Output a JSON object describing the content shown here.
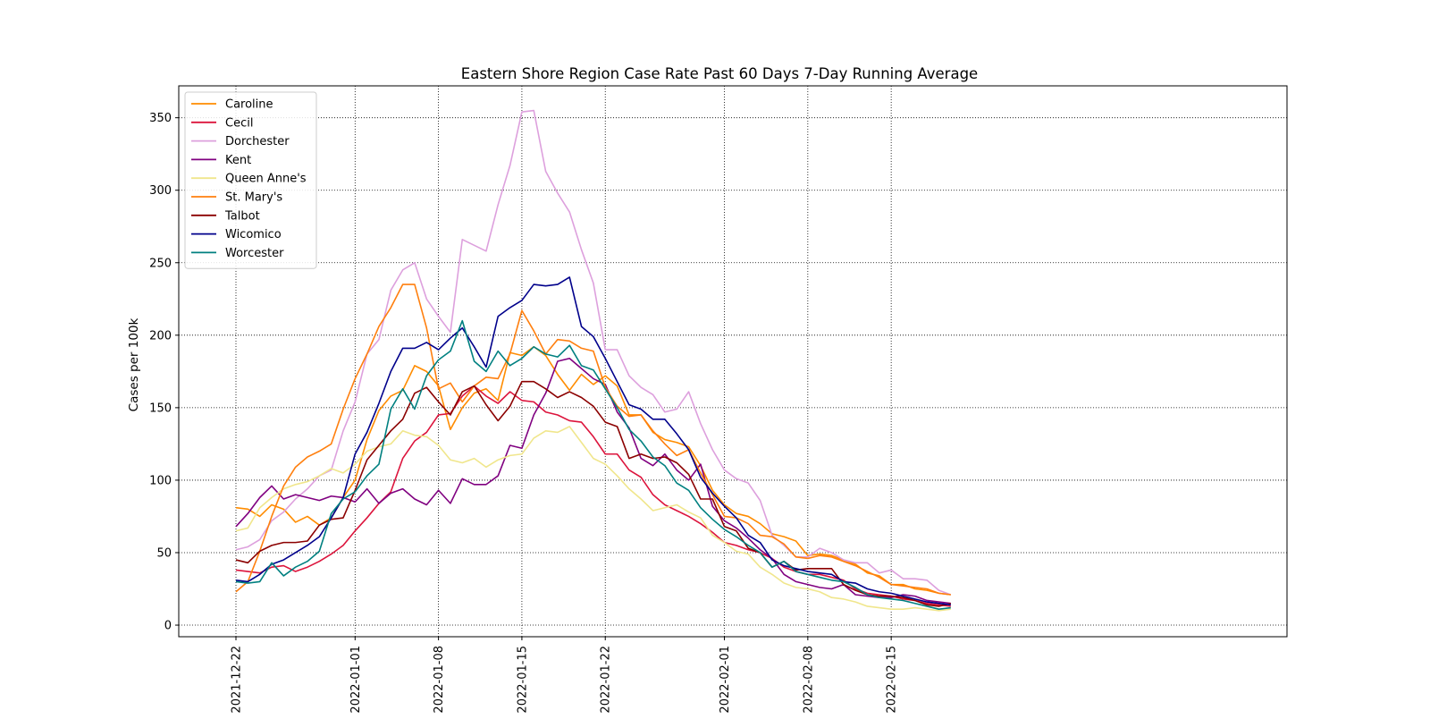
{
  "chart_data": {
    "type": "line",
    "title": "Eastern Shore Region Case Rate  Past 60 Days 7-Day Running Average",
    "xlabel": "",
    "ylabel": "Cases per 100k",
    "x": [
      "2021-12-22",
      "2021-12-23",
      "2021-12-24",
      "2021-12-25",
      "2021-12-26",
      "2021-12-27",
      "2021-12-28",
      "2021-12-29",
      "2021-12-30",
      "2021-12-31",
      "2022-01-01",
      "2022-01-02",
      "2022-01-03",
      "2022-01-04",
      "2022-01-05",
      "2022-01-06",
      "2022-01-07",
      "2022-01-08",
      "2022-01-09",
      "2022-01-10",
      "2022-01-11",
      "2022-01-12",
      "2022-01-13",
      "2022-01-14",
      "2022-01-15",
      "2022-01-16",
      "2022-01-17",
      "2022-01-18",
      "2022-01-19",
      "2022-01-20",
      "2022-01-21",
      "2022-01-22",
      "2022-01-23",
      "2022-01-24",
      "2022-01-25",
      "2022-01-26",
      "2022-01-27",
      "2022-01-28",
      "2022-01-29",
      "2022-01-30",
      "2022-01-31",
      "2022-02-01",
      "2022-02-02",
      "2022-02-03",
      "2022-02-04",
      "2022-02-05",
      "2022-02-06",
      "2022-02-07",
      "2022-02-08",
      "2022-02-09",
      "2022-02-10",
      "2022-02-11",
      "2022-02-12",
      "2022-02-13",
      "2022-02-14",
      "2022-02-15",
      "2022-02-16",
      "2022-02-17",
      "2022-02-18",
      "2022-02-19",
      "2022-02-20"
    ],
    "x_ticks": [
      "2021-12-22",
      "2022-01-01",
      "2022-01-08",
      "2022-01-15",
      "2022-01-22",
      "2022-02-01",
      "2022-02-08",
      "2022-02-15"
    ],
    "y_ticks": [
      0,
      50,
      100,
      150,
      200,
      250,
      300,
      350
    ],
    "ylim": [
      -8,
      372
    ],
    "grid": true,
    "legend_position": "upper-left",
    "series": [
      {
        "name": "Caroline",
        "color": "#ff8c00",
        "values": [
          81,
          80,
          75,
          83,
          80,
          71,
          75,
          69,
          74,
          88,
          100,
          128,
          148,
          158,
          162,
          179,
          175,
          165,
          135,
          150,
          160,
          163,
          155,
          188,
          186,
          192,
          186,
          173,
          162,
          173,
          166,
          172,
          165,
          145,
          145,
          133,
          128,
          126,
          123,
          110,
          93,
          83,
          77,
          75,
          70,
          63,
          61,
          58,
          48,
          49,
          48,
          45,
          42,
          36,
          34,
          28,
          28,
          25,
          24,
          22,
          21
        ]
      },
      {
        "name": "Cecil",
        "color": "#dc143c",
        "values": [
          38,
          37,
          36,
          40,
          41,
          37,
          40,
          44,
          49,
          55,
          65,
          74,
          84,
          92,
          115,
          127,
          133,
          145,
          146,
          158,
          165,
          158,
          153,
          161,
          155,
          154,
          147,
          145,
          141,
          140,
          130,
          118,
          118,
          107,
          102,
          90,
          83,
          79,
          75,
          70,
          64,
          57,
          55,
          52,
          50,
          46,
          40,
          37,
          35,
          35,
          33,
          31,
          25,
          22,
          21,
          20,
          18,
          17,
          15,
          14,
          13
        ]
      },
      {
        "name": "Dorchester",
        "color": "#dda0dd",
        "values": [
          52,
          54,
          59,
          72,
          78,
          87,
          94,
          103,
          107,
          134,
          154,
          187,
          197,
          231,
          245,
          250,
          225,
          213,
          202,
          266,
          262,
          258,
          290,
          317,
          354,
          355,
          313,
          298,
          285,
          259,
          236,
          190,
          190,
          172,
          164,
          159,
          147,
          149,
          161,
          139,
          121,
          107,
          101,
          98,
          86,
          62,
          55,
          47,
          47,
          53,
          50,
          45,
          43,
          43,
          36,
          38,
          32,
          32,
          31,
          24,
          21
        ]
      },
      {
        "name": "Kent",
        "color": "#800080",
        "values": [
          68,
          77,
          88,
          96,
          87,
          90,
          88,
          86,
          89,
          88,
          85,
          94,
          84,
          91,
          94,
          87,
          83,
          93,
          84,
          101,
          97,
          97,
          103,
          124,
          122,
          145,
          160,
          182,
          184,
          177,
          170,
          166,
          147,
          136,
          115,
          110,
          118,
          107,
          100,
          111,
          82,
          72,
          67,
          60,
          52,
          46,
          35,
          30,
          28,
          26,
          25,
          28,
          21,
          20,
          19,
          19,
          21,
          20,
          17,
          16,
          15
        ]
      },
      {
        "name": "Queen Anne's",
        "color": "#f0e68c",
        "values": [
          65,
          67,
          81,
          88,
          94,
          97,
          99,
          103,
          108,
          105,
          111,
          120,
          123,
          125,
          134,
          131,
          130,
          124,
          114,
          112,
          115,
          109,
          114,
          117,
          118,
          129,
          134,
          133,
          137,
          126,
          115,
          111,
          103,
          94,
          87,
          79,
          81,
          83,
          78,
          74,
          62,
          57,
          51,
          49,
          40,
          35,
          29,
          26,
          25,
          23,
          19,
          18,
          16,
          13,
          12,
          11,
          11,
          12,
          11,
          10,
          11
        ]
      },
      {
        "name": "St. Mary's",
        "color": "#ff7f0e",
        "values": [
          23,
          30,
          51,
          75,
          96,
          109,
          116,
          120,
          125,
          149,
          170,
          187,
          206,
          219,
          235,
          235,
          205,
          163,
          167,
          154,
          165,
          171,
          170,
          187,
          217,
          203,
          187,
          197,
          196,
          191,
          189,
          164,
          151,
          144,
          145,
          134,
          125,
          117,
          121,
          105,
          90,
          75,
          74,
          70,
          62,
          61,
          56,
          47,
          46,
          48,
          47,
          44,
          41,
          37,
          33,
          28,
          27,
          26,
          25,
          22,
          21
        ]
      },
      {
        "name": "Talbot",
        "color": "#8b0000",
        "values": [
          45,
          43,
          51,
          55,
          57,
          57,
          58,
          69,
          73,
          74,
          93,
          114,
          124,
          134,
          142,
          160,
          164,
          154,
          145,
          161,
          165,
          152,
          141,
          151,
          168,
          168,
          163,
          157,
          161,
          157,
          151,
          140,
          137,
          115,
          118,
          115,
          116,
          112,
          104,
          87,
          87,
          68,
          65,
          53,
          50,
          40,
          44,
          38,
          39,
          39,
          39,
          28,
          24,
          21,
          20,
          20,
          19,
          17,
          14,
          13,
          15
        ]
      },
      {
        "name": "Wicomico",
        "color": "#00008b",
        "values": [
          31,
          30,
          35,
          42,
          45,
          50,
          55,
          61,
          74,
          88,
          118,
          133,
          153,
          175,
          191,
          191,
          195,
          190,
          198,
          205,
          192,
          178,
          213,
          219,
          224,
          235,
          234,
          235,
          240,
          206,
          199,
          184,
          168,
          152,
          149,
          142,
          142,
          132,
          121,
          102,
          91,
          82,
          74,
          62,
          57,
          45,
          41,
          39,
          37,
          36,
          35,
          30,
          29,
          25,
          23,
          22,
          20,
          18,
          16,
          15,
          14
        ]
      },
      {
        "name": "Worcester",
        "color": "#008080",
        "values": [
          30,
          29,
          30,
          43,
          34,
          40,
          44,
          51,
          77,
          87,
          92,
          103,
          111,
          149,
          163,
          149,
          172,
          183,
          189,
          210,
          182,
          175,
          189,
          179,
          184,
          192,
          187,
          185,
          193,
          179,
          176,
          163,
          150,
          135,
          127,
          116,
          110,
          98,
          93,
          81,
          73,
          66,
          61,
          55,
          50,
          40,
          44,
          37,
          35,
          33,
          31,
          30,
          26,
          21,
          19,
          18,
          17,
          15,
          13,
          11,
          12
        ]
      }
    ]
  }
}
